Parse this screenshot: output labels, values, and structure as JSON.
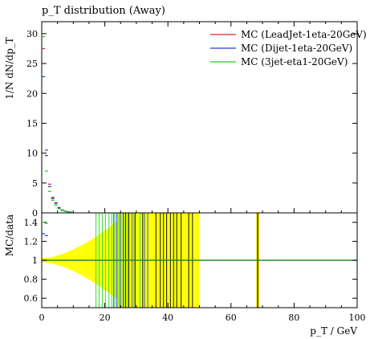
{
  "chart_data": [
    {
      "type": "line",
      "title": "p_T distribution (Away)",
      "ylabel": "1/N dN/dp_T",
      "ylim": [
        0,
        32
      ],
      "xlim": [
        0,
        100
      ],
      "yticks": [
        "0",
        "5",
        "10",
        "15",
        "20",
        "25",
        "30"
      ],
      "legend_position": "top-right",
      "series": [
        {
          "name": "MC (LeadJet-1eta-20GeV)",
          "color": "#d62728",
          "x": [
            0.5,
            1.5,
            2.5,
            3.5,
            4.5,
            5.5,
            6.5,
            7.5,
            8.5,
            9.5
          ],
          "y": [
            27.5,
            10.5,
            4.8,
            2.6,
            1.7,
            0.9,
            0.5,
            0.3,
            0.2,
            0.1
          ]
        },
        {
          "name": "MC (Dijet-1eta-20GeV)",
          "color": "#1f3fd6",
          "x": [
            0.5,
            1.5,
            2.5,
            3.5,
            4.5,
            5.5,
            6.5,
            7.5,
            8.5,
            9.5
          ],
          "y": [
            22.8,
            9.6,
            4.4,
            2.4,
            1.6,
            0.8,
            0.45,
            0.28,
            0.18,
            0.1
          ]
        },
        {
          "name": "MC (3jet-eta1-20GeV)",
          "color": "#22cc22",
          "x": [
            0.5,
            1.5,
            2.5,
            3.5,
            4.5,
            5.5,
            6.5,
            7.5,
            8.5,
            9.5
          ],
          "y": [
            29.5,
            7.0,
            3.6,
            2.1,
            1.3,
            0.7,
            0.4,
            0.25,
            0.15,
            0.08
          ]
        }
      ]
    },
    {
      "type": "line",
      "ylabel": "MC/data",
      "xlabel": "p_T / GeV",
      "xlim": [
        0,
        100
      ],
      "ylim": [
        0.5,
        1.5
      ],
      "yticks": [
        "0.6",
        "0.8",
        "1",
        "1.2",
        "1.4"
      ],
      "xticks": [
        "0",
        "20",
        "40",
        "60",
        "80",
        "100"
      ],
      "reference": 1.0,
      "series": [
        {
          "name": "MC (3jet-eta1-20GeV)",
          "color": "#22cc22",
          "x": [
            0.5,
            1.5
          ],
          "y": [
            1.4,
            1.39
          ]
        },
        {
          "name": "MC (Dijet-1eta-20GeV)",
          "color": "#1f3fd6",
          "x": [
            0.5,
            1.5
          ],
          "y": [
            1.28,
            1.26
          ]
        }
      ]
    }
  ]
}
